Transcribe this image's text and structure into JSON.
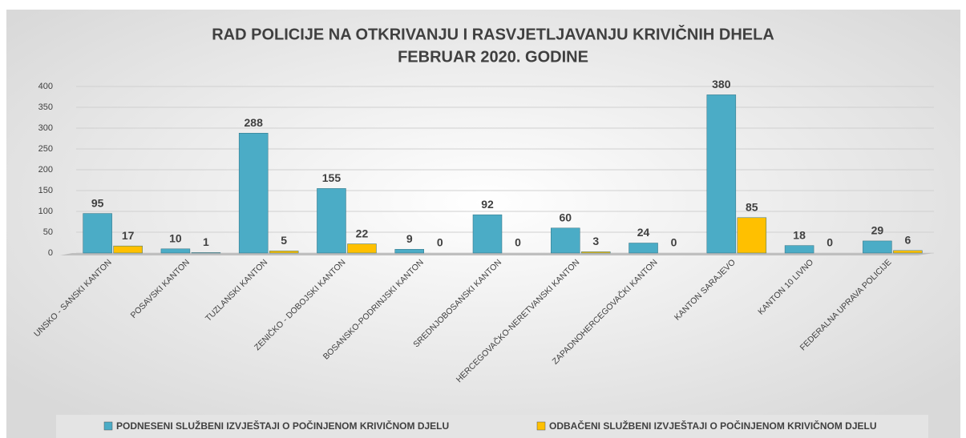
{
  "chart_data": {
    "type": "bar",
    "title": [
      "RAD POLICIJE NA OTKRIVANJU I RASVJETLJAVANJU KRIVIČNIH DHELA",
      "FEBRUAR 2020. GODINE"
    ],
    "categories": [
      "UNSKO - SANSKI KANTON",
      "POSAVSKI KANTON",
      "TUZLANSKI KANTON",
      "ZENIČKO - DOBOJSKI KANTON",
      "BOSANSKO-PODRINJSKI KANTON",
      "SREDNJOBOSANSKI KANTON",
      "HERCEGOVAČKO-NERETVANSKI KANTON",
      "ZAPADNOHERCEGOVAČKI KANTON",
      "KANTON SARAJEVO",
      "KANTON 10 LIVNO",
      "FEDERALNA UPRAVA POLICIJE"
    ],
    "series": [
      {
        "name": "PODNESENI SLUŽBENI IZVJEŠTAJI O POČINJENOM KRIVIČNOM DJELU",
        "color": "#4bacc6",
        "values": [
          95,
          10,
          288,
          155,
          9,
          92,
          60,
          24,
          380,
          18,
          29
        ]
      },
      {
        "name": "ODBAČENI SLUŽBENI IZVJEŠTAJI O POČINJENOM KRIVIČNOM DJELU",
        "color": "#ffc000",
        "values": [
          17,
          1,
          5,
          22,
          0,
          0,
          3,
          0,
          85,
          0,
          6
        ]
      }
    ],
    "ylim": [
      0,
      400
    ],
    "yticks": [
      0,
      50,
      100,
      150,
      200,
      250,
      300,
      350,
      400
    ],
    "grid": true,
    "legend": "bottom"
  }
}
